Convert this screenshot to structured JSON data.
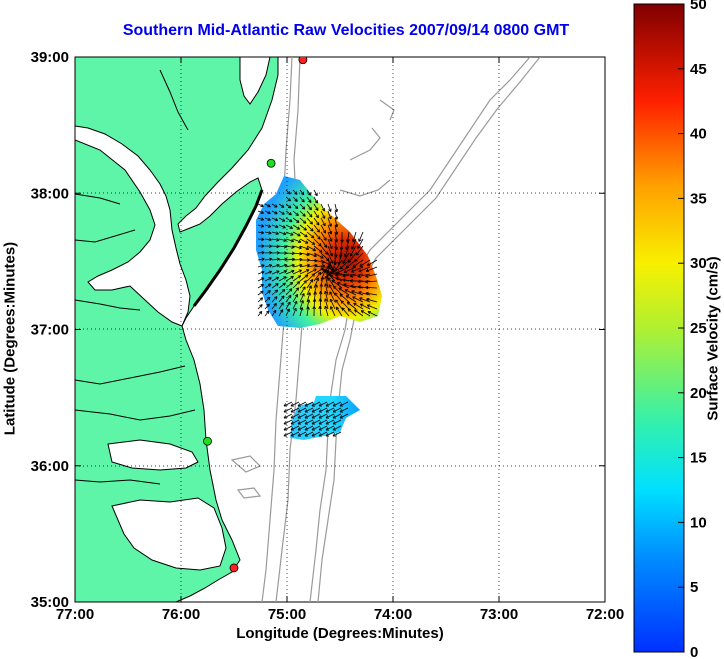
{
  "title": "Southern Mid-Atlantic Raw Velocities 2007/09/14 0800 GMT",
  "xlabel": "Longitude (Degrees:Minutes)",
  "ylabel": "Latitude (Degrees:Minutes)",
  "colorbar_label": "Surface Velocity (cm/s)",
  "x_ticks": [
    "77:00",
    "76:00",
    "75:00",
    "74:00",
    "73:00",
    "72:00"
  ],
  "y_ticks": [
    "39:00",
    "38:00",
    "37:00",
    "36:00",
    "35:00"
  ],
  "colorbar_ticks": [
    "0",
    "5",
    "10",
    "15",
    "20",
    "25",
    "30",
    "35",
    "40",
    "45",
    "50"
  ],
  "colors": {
    "land": "#5ef5a8",
    "coast": "#000000",
    "bathymetry": "#9a9a9a",
    "title": "#0000ee",
    "station_green": "#22dd22",
    "station_red": "#ff2020"
  },
  "map": {
    "lon_range": [
      -77,
      -72
    ],
    "lat_range": [
      35,
      39
    ],
    "velocity_range_cm_s": [
      0,
      50
    ]
  },
  "stations": [
    {
      "lon": -74.85,
      "lat": 38.98,
      "color": "red"
    },
    {
      "lon": -75.15,
      "lat": 38.22,
      "color": "green"
    },
    {
      "lon": -75.75,
      "lat": 36.18,
      "color": "green"
    },
    {
      "lon": -75.5,
      "lat": 35.25,
      "color": "red"
    }
  ]
}
